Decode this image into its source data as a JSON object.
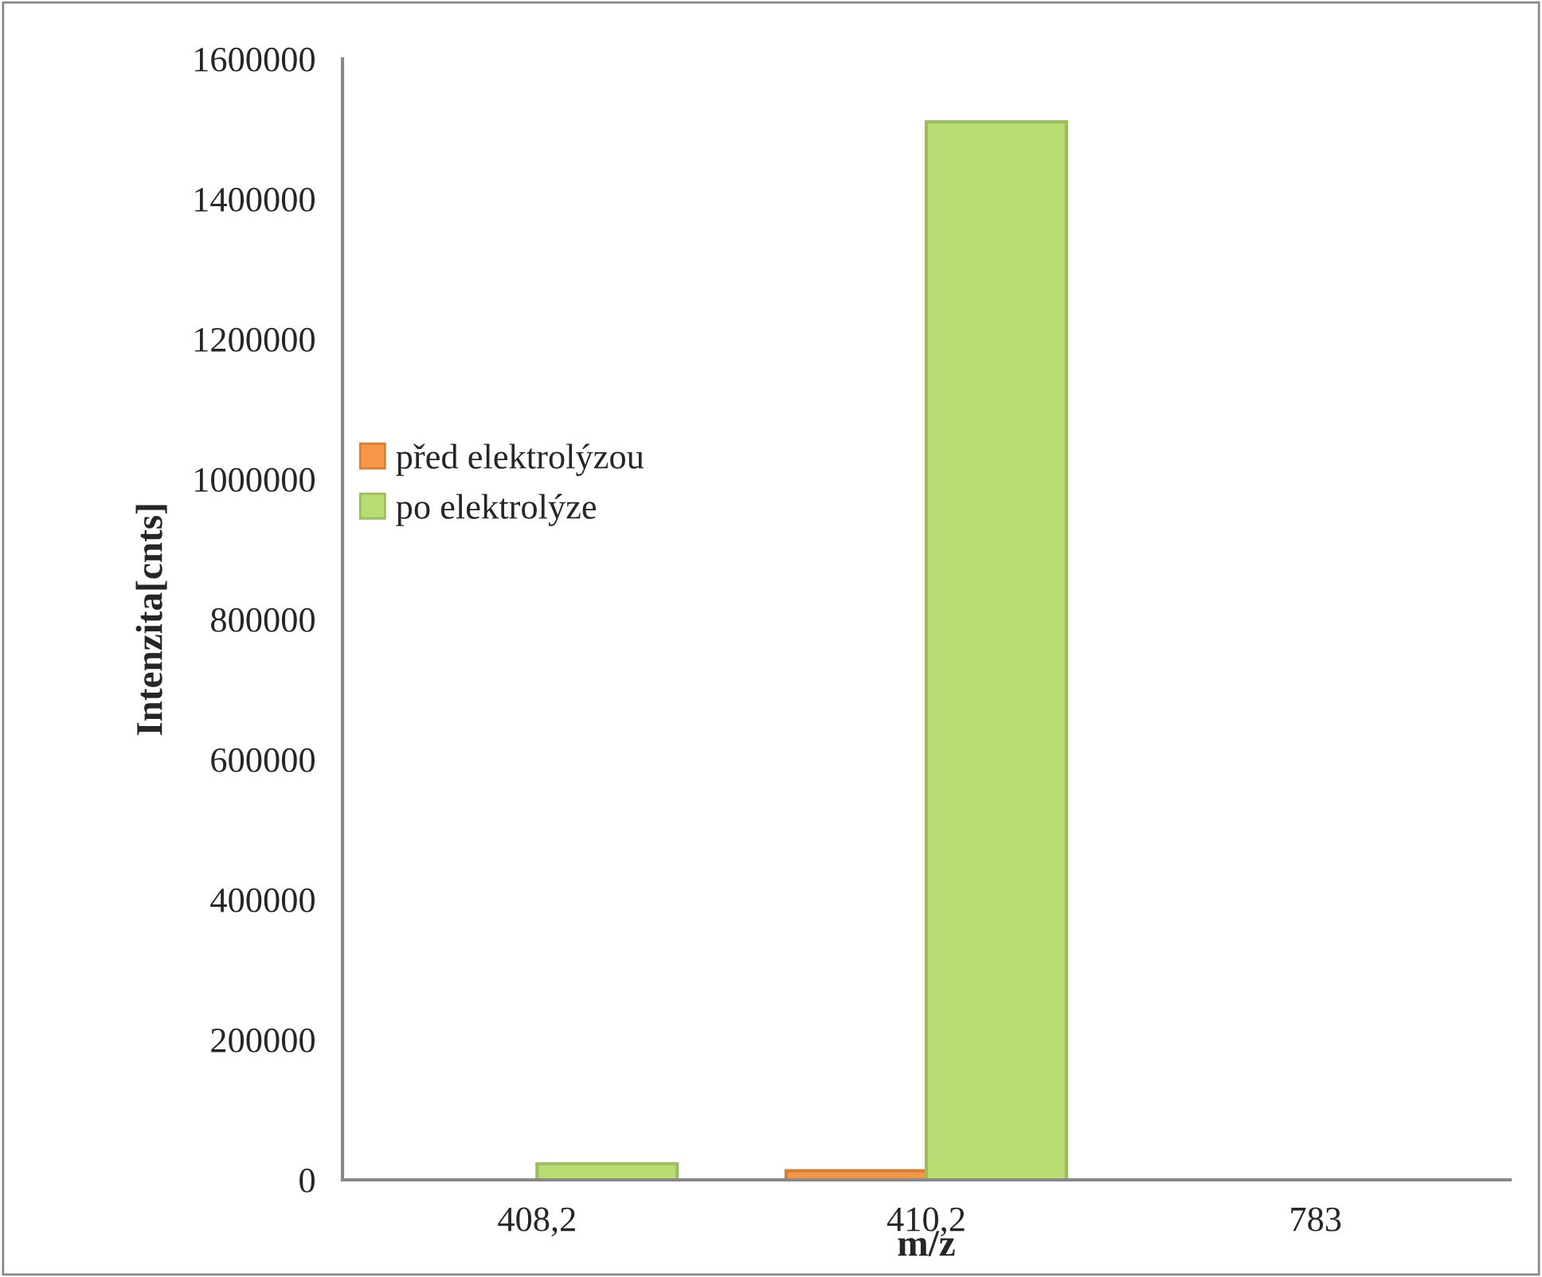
{
  "chart_data": {
    "type": "bar",
    "xlabel": "m/z",
    "ylabel": "Intenzita[cnts]",
    "categories": [
      "408,2",
      "410,2",
      "783"
    ],
    "series": [
      {
        "name": "před elektrolýzou",
        "color": "#f79646",
        "values": [
          null,
          13000,
          null
        ]
      },
      {
        "name": "po elektrolýze",
        "color": "#b9dd72",
        "values": [
          23000,
          1510000,
          null
        ]
      }
    ],
    "ylim": [
      0,
      1600000
    ],
    "yticks": [
      0,
      200000,
      400000,
      600000,
      800000,
      1000000,
      1200000,
      1400000,
      1600000
    ],
    "grid": false,
    "legend": "left"
  }
}
